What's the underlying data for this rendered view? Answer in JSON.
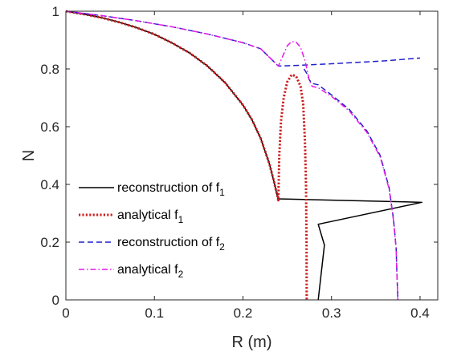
{
  "chart_data": {
    "type": "line",
    "xlabel": "R (m)",
    "ylabel": "N",
    "xlim": [
      0,
      0.42
    ],
    "ylim": [
      0,
      1
    ],
    "xticks": [
      0,
      0.1,
      0.2,
      0.3,
      0.4
    ],
    "xtick_labels": [
      "0",
      "0.1",
      "0.2",
      "0.3",
      "0.4"
    ],
    "yticks": [
      0,
      0.2,
      0.4,
      0.6,
      0.8,
      1
    ],
    "ytick_labels": [
      "0",
      "0.2",
      "0.4",
      "0.6",
      "0.8",
      "1"
    ],
    "grid": false,
    "legend_position": "lower-left",
    "series": [
      {
        "name": "reconstruction of f",
        "subscript": "1",
        "color": "#000000",
        "style": "solid",
        "points": [
          [
            0,
            1
          ],
          [
            0.02,
            0.99
          ],
          [
            0.04,
            0.978
          ],
          [
            0.06,
            0.962
          ],
          [
            0.08,
            0.943
          ],
          [
            0.1,
            0.92
          ],
          [
            0.12,
            0.89
          ],
          [
            0.14,
            0.855
          ],
          [
            0.16,
            0.81
          ],
          [
            0.18,
            0.752
          ],
          [
            0.2,
            0.675
          ],
          [
            0.21,
            0.625
          ],
          [
            0.22,
            0.56
          ],
          [
            0.23,
            0.47
          ],
          [
            0.235,
            0.41
          ],
          [
            0.24,
            0.345
          ],
          [
            0.24,
            0.35
          ],
          [
            0.402,
            0.338
          ],
          [
            0.285,
            0.262
          ],
          [
            0.292,
            0.19
          ],
          [
            0.285,
            0
          ]
        ]
      },
      {
        "name": "analytical f",
        "subscript": "1",
        "color": "#cc1f1f",
        "style": "dotted",
        "points": [
          [
            0,
            1
          ],
          [
            0.02,
            0.99
          ],
          [
            0.04,
            0.978
          ],
          [
            0.06,
            0.962
          ],
          [
            0.08,
            0.943
          ],
          [
            0.1,
            0.92
          ],
          [
            0.12,
            0.89
          ],
          [
            0.14,
            0.855
          ],
          [
            0.16,
            0.81
          ],
          [
            0.18,
            0.752
          ],
          [
            0.2,
            0.675
          ],
          [
            0.21,
            0.625
          ],
          [
            0.22,
            0.56
          ],
          [
            0.23,
            0.47
          ],
          [
            0.235,
            0.41
          ],
          [
            0.24,
            0.345
          ],
          [
            0.241,
            0.5
          ],
          [
            0.243,
            0.62
          ],
          [
            0.246,
            0.7
          ],
          [
            0.25,
            0.755
          ],
          [
            0.255,
            0.78
          ],
          [
            0.26,
            0.775
          ],
          [
            0.265,
            0.74
          ],
          [
            0.268,
            0.68
          ],
          [
            0.27,
            0.55
          ],
          [
            0.2712,
            0.4
          ],
          [
            0.2718,
            0.2
          ],
          [
            0.272,
            0
          ]
        ]
      },
      {
        "name": "reconstruction of f",
        "subscript": "2",
        "color": "#1f1fcc",
        "style": "dashed",
        "points": [
          [
            0,
            1
          ],
          [
            0.04,
            0.985
          ],
          [
            0.08,
            0.967
          ],
          [
            0.12,
            0.946
          ],
          [
            0.16,
            0.921
          ],
          [
            0.2,
            0.891
          ],
          [
            0.22,
            0.87
          ],
          [
            0.24,
            0.81
          ],
          [
            0.26,
            0.812
          ],
          [
            0.3,
            0.818
          ],
          [
            0.33,
            0.823
          ],
          [
            0.36,
            0.828
          ],
          [
            0.4,
            0.838
          ]
        ]
      },
      {
        "name": "reconstruction of f",
        "subscript": "2",
        "legend": false,
        "color": "#1f1fcc",
        "style": "dashed",
        "points": [
          [
            0.269,
            0.8
          ],
          [
            0.272,
            0.785
          ],
          [
            0.275,
            0.762
          ],
          [
            0.278,
            0.75
          ],
          [
            0.285,
            0.745
          ],
          [
            0.3,
            0.71
          ],
          [
            0.32,
            0.66
          ],
          [
            0.34,
            0.585
          ],
          [
            0.355,
            0.5
          ],
          [
            0.365,
            0.39
          ],
          [
            0.37,
            0.28
          ],
          [
            0.373,
            0.18
          ],
          [
            0.374,
            0.08
          ],
          [
            0.375,
            0
          ]
        ]
      },
      {
        "name": "analytical f",
        "subscript": "2",
        "color": "#e619e6",
        "style": "dashdot",
        "points": [
          [
            0,
            1
          ],
          [
            0.04,
            0.985
          ],
          [
            0.08,
            0.967
          ],
          [
            0.12,
            0.946
          ],
          [
            0.16,
            0.921
          ],
          [
            0.2,
            0.891
          ],
          [
            0.22,
            0.87
          ],
          [
            0.24,
            0.81
          ],
          [
            0.245,
            0.845
          ],
          [
            0.25,
            0.88
          ],
          [
            0.255,
            0.895
          ],
          [
            0.26,
            0.893
          ],
          [
            0.265,
            0.875
          ],
          [
            0.27,
            0.83
          ],
          [
            0.275,
            0.76
          ],
          [
            0.278,
            0.74
          ],
          [
            0.285,
            0.735
          ],
          [
            0.3,
            0.705
          ],
          [
            0.32,
            0.655
          ],
          [
            0.34,
            0.58
          ],
          [
            0.355,
            0.495
          ],
          [
            0.365,
            0.385
          ],
          [
            0.37,
            0.275
          ],
          [
            0.373,
            0.175
          ],
          [
            0.374,
            0.075
          ],
          [
            0.375,
            0
          ]
        ]
      }
    ]
  }
}
